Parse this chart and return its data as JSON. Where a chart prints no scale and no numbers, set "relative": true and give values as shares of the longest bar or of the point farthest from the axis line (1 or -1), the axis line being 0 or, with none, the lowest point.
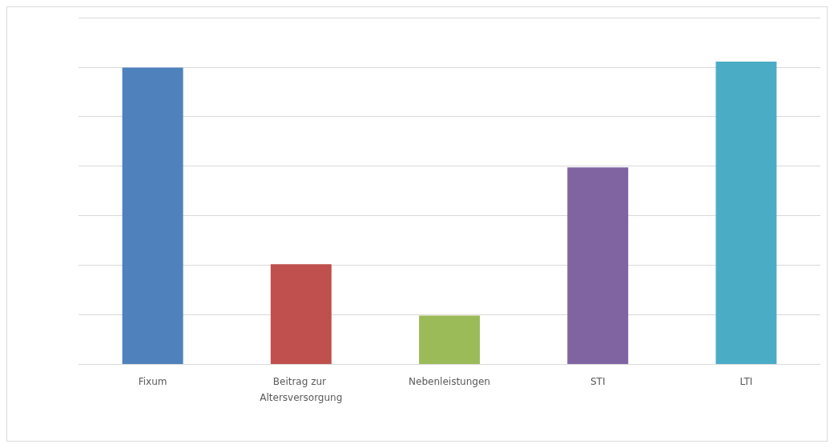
{
  "chart_data": {
    "type": "bar",
    "relative": true,
    "categories": [
      "Fixum",
      "Beitrag zur Altersversorgung",
      "Nebenleistungen",
      "STI",
      "LTI"
    ],
    "values": [
      0.98,
      0.33,
      0.16,
      0.65,
      1
    ],
    "colors": [
      "#4f81bd",
      "#c0504d",
      "#9bbb59",
      "#8064a2",
      "#4bacc6"
    ],
    "grid": "y"
  }
}
